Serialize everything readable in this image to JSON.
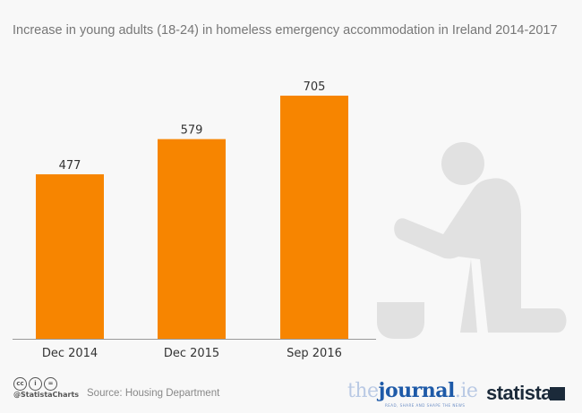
{
  "title": "Increase in young adults (18-24) in homeless emergency accommodation in Ireland 2014-2017",
  "chart_data": {
    "type": "bar",
    "title": "Increase in young adults (18-24) in homeless emergency accommodation in Ireland 2014-2017",
    "categories": [
      "Dec 2014",
      "Dec 2015",
      "Sep 2016"
    ],
    "values": [
      477,
      579,
      705
    ],
    "xlabel": "",
    "ylabel": "",
    "grid": false,
    "bar_color": "#f78500"
  },
  "footer": {
    "handle": "@StatistaCharts",
    "source": "Source: Housing Department",
    "cc_icons": [
      "cc-icon",
      "by-icon",
      "nd-icon"
    ],
    "partner_logo": "thejournal.ie",
    "partner_tagline": "READ, SHARE AND SHAPE THE NEWS",
    "brand_logo": "statista"
  },
  "illustration": "kneeling-person-with-bowl-icon"
}
